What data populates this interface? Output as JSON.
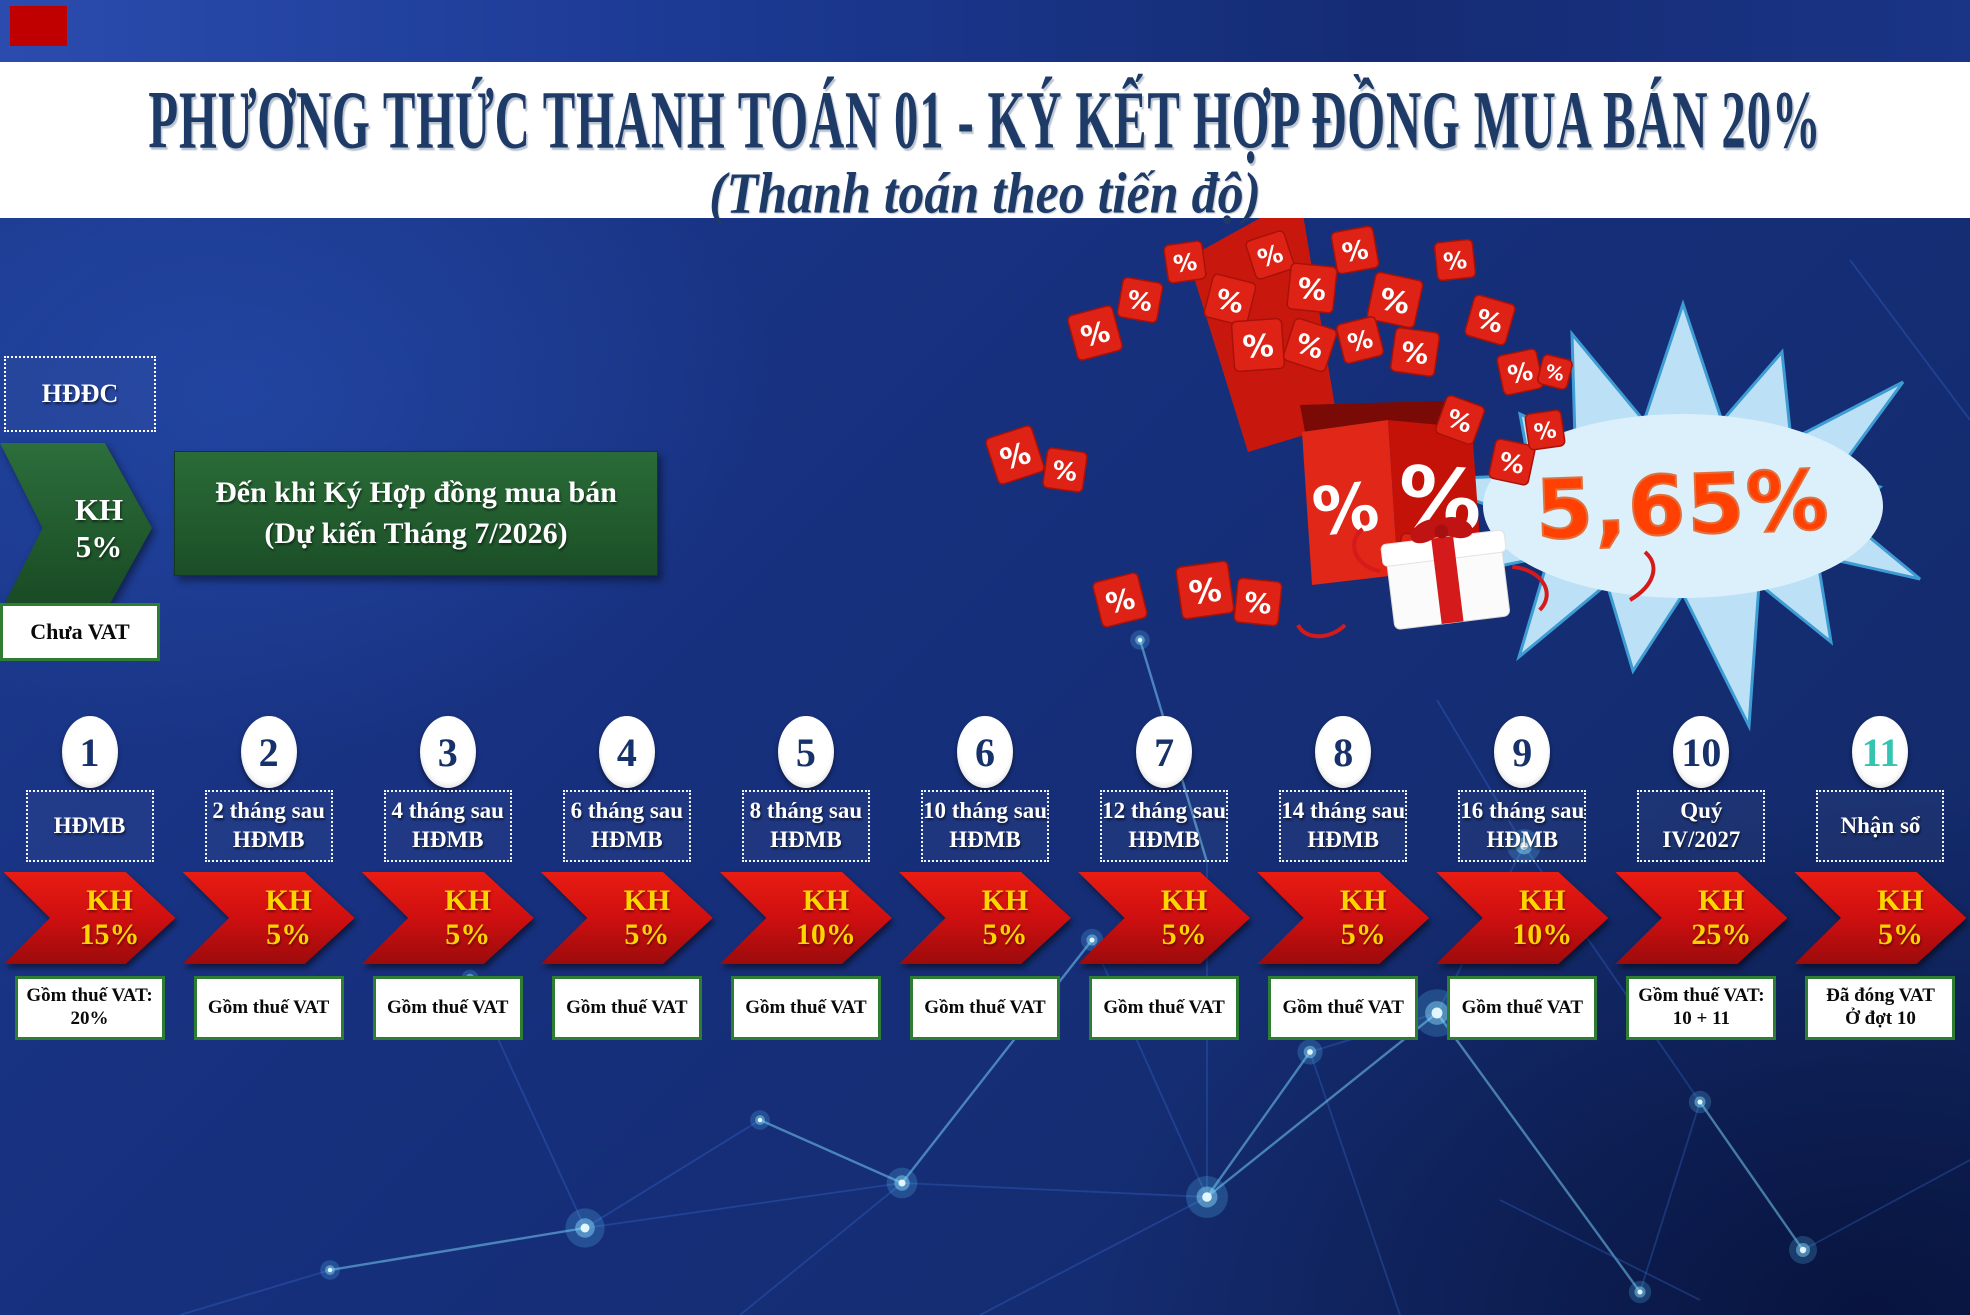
{
  "header": {
    "title_line1": "PHƯƠNG THỨC THANH TOÁN 01 - KÝ KẾT HỢP ĐỒNG MUA BÁN 20%",
    "title_line2": "(Thanh toán theo tiến độ)"
  },
  "deposit": {
    "contract_label": "HĐĐC",
    "arrow_top": "KH",
    "arrow_pct": "5%",
    "milestone_line1": "Đến khi Ký Hợp đồng mua bán",
    "milestone_line2": "(Dự kiến Tháng 7/2026)",
    "vat_note": "Chưa VAT"
  },
  "promo": {
    "badge_value": "5,65%"
  },
  "timeline": {
    "kh_label": "KH",
    "columns": [
      {
        "num": "1",
        "label_lines": [
          "HĐMB"
        ],
        "pct": "15%",
        "vat_lines": [
          "Gồm thuế VAT:",
          "20%"
        ]
      },
      {
        "num": "2",
        "label_lines": [
          "2 tháng sau",
          "HĐMB"
        ],
        "pct": "5%",
        "vat_lines": [
          "Gồm thuế VAT"
        ]
      },
      {
        "num": "3",
        "label_lines": [
          "4 tháng sau",
          "HĐMB"
        ],
        "pct": "5%",
        "vat_lines": [
          "Gồm thuế VAT"
        ]
      },
      {
        "num": "4",
        "label_lines": [
          "6 tháng sau",
          "HĐMB"
        ],
        "pct": "5%",
        "vat_lines": [
          "Gồm thuế VAT"
        ]
      },
      {
        "num": "5",
        "label_lines": [
          "8 tháng sau",
          "HĐMB"
        ],
        "pct": "10%",
        "vat_lines": [
          "Gồm thuế VAT"
        ]
      },
      {
        "num": "6",
        "label_lines": [
          "10 tháng sau",
          "HĐMB"
        ],
        "pct": "5%",
        "vat_lines": [
          "Gồm thuế VAT"
        ]
      },
      {
        "num": "7",
        "label_lines": [
          "12 tháng sau",
          "HĐMB"
        ],
        "pct": "5%",
        "vat_lines": [
          "Gồm thuế VAT"
        ]
      },
      {
        "num": "8",
        "label_lines": [
          "14 tháng sau",
          "HĐMB"
        ],
        "pct": "5%",
        "vat_lines": [
          "Gồm thuế VAT"
        ]
      },
      {
        "num": "9",
        "label_lines": [
          "16 tháng sau",
          "HĐMB"
        ],
        "pct": "10%",
        "vat_lines": [
          "Gồm thuế VAT"
        ]
      },
      {
        "num": "10",
        "label_lines": [
          "Quý IV/2027"
        ],
        "pct": "25%",
        "vat_lines": [
          "Gồm thuế VAT:",
          "10 + 11"
        ]
      },
      {
        "num": "11",
        "label_lines": [
          "Nhận sổ"
        ],
        "pct": "5%",
        "vat_lines": [
          "Đã đóng VAT",
          "Ở đợt 10"
        ],
        "num_accent": true
      }
    ]
  },
  "colors": {
    "slide_bg": "#17307E",
    "top_bar": "#1C3A94",
    "title_text": "#1E3A66",
    "green": "#215A2D",
    "red_arrow": "#C00000",
    "arrow_text": "#FFD500",
    "box_border_green": "#2E7D32",
    "badge_fill": "#BCE0F5",
    "badge_value_color": "#FF4000",
    "step11_accent": "#35C4B0",
    "plexus": "#4FC3F7"
  },
  "decor": {
    "dice_symbol": "%"
  }
}
